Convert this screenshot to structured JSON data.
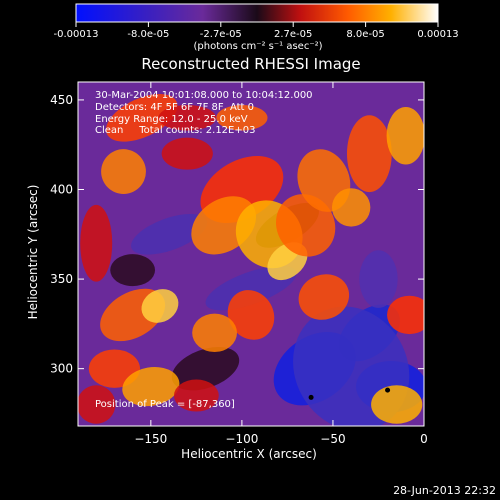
{
  "colorbar": {
    "tick_labels": [
      "-0.00013",
      "-8.0e-05",
      "-2.7e-05",
      "2.7e-05",
      "8.0e-05",
      "0.00013"
    ],
    "units_label": "(photons cm⁻² s⁻¹ asec⁻²)",
    "range": [
      -0.00013,
      0.00013
    ]
  },
  "chart_data": {
    "type": "heatmap",
    "title": "Reconstructed RHESSI Image",
    "xlabel": "Heliocentric X (arcsec)",
    "ylabel": "Heliocentric Y (arcsec)",
    "xlim": [
      -190,
      0
    ],
    "ylim": [
      268,
      460
    ],
    "x_ticks": [
      {
        "value": -150,
        "label": "−150"
      },
      {
        "value": -100,
        "label": "−100"
      },
      {
        "value": -50,
        "label": "−50"
      },
      {
        "value": 0,
        "label": "0"
      }
    ],
    "y_ticks": [
      {
        "value": 300,
        "label": "300"
      },
      {
        "value": 350,
        "label": "350"
      },
      {
        "value": 400,
        "label": "400"
      },
      {
        "value": 450,
        "label": "450"
      }
    ],
    "annotations": [
      "30-Mar-2004 10:01:08.000 to 10:04:12.000",
      "Detectors: 4F 5F 6F 7F 8F, Att 0",
      "Energy Range: 12.0 - 25.0 keV",
      "Clean     Total counts: 2.12E+03"
    ],
    "peak_label": "Position of Peak = [-87,360]",
    "markers": [
      {
        "x": -62,
        "y": 284
      },
      {
        "x": -20,
        "y": 288
      }
    ]
  },
  "footer": {
    "date": "28-Jun-2013 22:32"
  }
}
